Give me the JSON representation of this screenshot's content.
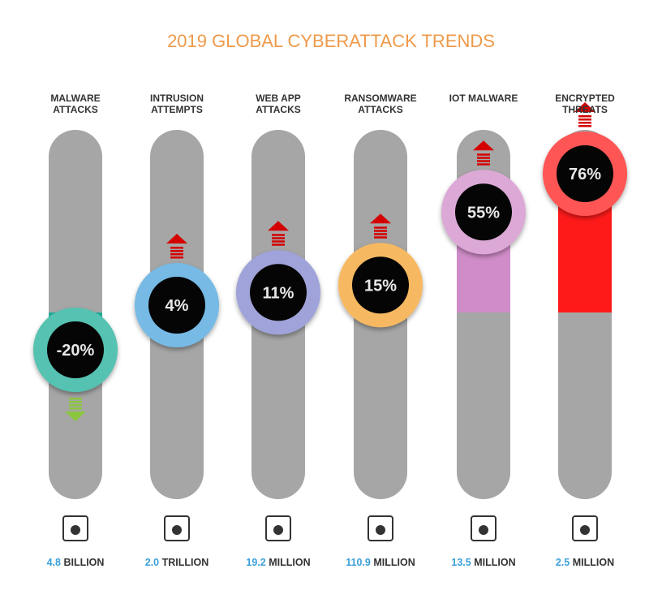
{
  "chart_data": {
    "type": "bar",
    "title": "2019 GLOBAL CYBERATTACK TRENDS",
    "categories": [
      "MALWARE ATTACKS",
      "INTRUSION ATTEMPTS",
      "WEB APP ATTACKS",
      "RANSOMWARE ATTACKS",
      "IOT MALWARE",
      "ENCRYPTED THREATS"
    ],
    "values": [
      -20,
      4,
      11,
      15,
      55,
      76
    ],
    "value_labels": [
      "-20%",
      "4%",
      "11%",
      "15%",
      "55%",
      "76%"
    ],
    "colors": [
      "#1fae98",
      "#4aa3dc",
      "#8185cc",
      "#f3a22e",
      "#d08cc8",
      "#ff1a1a"
    ],
    "totals": [
      {
        "number": "4.8",
        "unit": "BILLION"
      },
      {
        "number": "2.0",
        "unit": "TRILLION"
      },
      {
        "number": "19.2",
        "unit": "MILLION"
      },
      {
        "number": "110.9",
        "unit": "MILLION"
      },
      {
        "number": "13.5",
        "unit": "MILLION"
      },
      {
        "number": "2.5",
        "unit": "MILLION"
      }
    ],
    "ylim": [
      -100,
      100
    ]
  }
}
